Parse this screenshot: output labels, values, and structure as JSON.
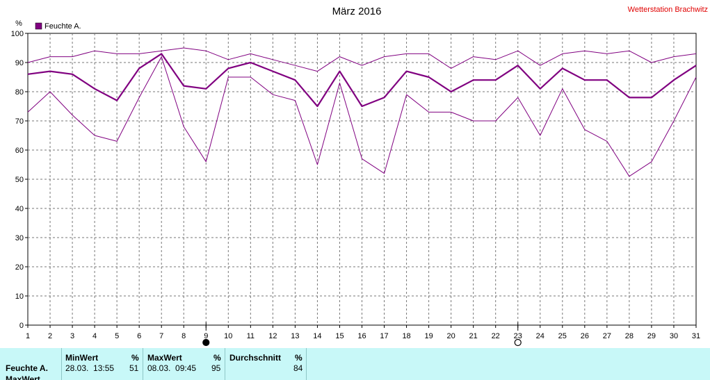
{
  "chart_data": {
    "type": "line",
    "title": "März 2016",
    "station": "Wetterstation Brachwitz",
    "ylabel": "%",
    "ylim": [
      0,
      100
    ],
    "yticks": [
      0,
      10,
      20,
      30,
      40,
      50,
      60,
      70,
      80,
      90,
      100
    ],
    "x": [
      1,
      2,
      3,
      4,
      5,
      6,
      7,
      8,
      9,
      10,
      11,
      12,
      13,
      14,
      15,
      16,
      17,
      18,
      19,
      20,
      21,
      22,
      23,
      24,
      25,
      26,
      27,
      28,
      29,
      30,
      31
    ],
    "grid": true,
    "legend": {
      "position": "top-left",
      "entries": [
        {
          "label": "Feuchte A.",
          "color": "#800080"
        }
      ]
    },
    "series": [
      {
        "role": "max",
        "color": "#800080",
        "values": [
          90,
          92,
          92,
          94,
          93,
          93,
          94,
          95,
          94,
          91,
          93,
          91,
          89,
          87,
          92,
          89,
          92,
          93,
          93,
          88,
          92,
          91,
          94,
          89,
          93,
          94,
          93,
          94,
          90,
          92,
          93
        ]
      },
      {
        "role": "avg",
        "color": "#800080",
        "values": [
          86,
          87,
          86,
          81,
          77,
          88,
          93,
          82,
          81,
          88,
          90,
          87,
          84,
          75,
          87,
          75,
          78,
          87,
          85,
          80,
          84,
          84,
          89,
          81,
          88,
          84,
          84,
          78,
          78,
          84,
          89
        ]
      },
      {
        "role": "min",
        "color": "#800080",
        "values": [
          73,
          80,
          72,
          65,
          63,
          78,
          92,
          68,
          56,
          85,
          85,
          79,
          77,
          55,
          83,
          57,
          52,
          79,
          73,
          73,
          70,
          70,
          78,
          65,
          81,
          67,
          63,
          51,
          56,
          70,
          85
        ]
      }
    ],
    "markers": [
      {
        "day": 9,
        "symbol": "full-moon-filled"
      },
      {
        "day": 23,
        "symbol": "full-moon-open"
      }
    ]
  },
  "stats": {
    "row_label": "Feuchte A.",
    "row_label_2": "MaxWert",
    "min": {
      "header": "MinWert",
      "unit": "%",
      "time": "28.03.  13:55",
      "value": "51"
    },
    "max": {
      "header": "MaxWert",
      "unit": "%",
      "time": "08.03.  09:45",
      "value": "95"
    },
    "avg": {
      "header": "Durchschnitt",
      "unit": "%",
      "value": "84"
    }
  }
}
